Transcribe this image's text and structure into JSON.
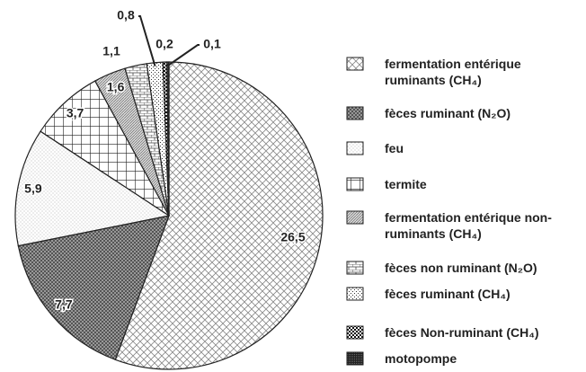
{
  "chart_data": {
    "type": "pie",
    "categories": [
      "fermentation entérique ruminants (CH₄)",
      "fèces ruminant (N₂O)",
      "feu",
      "termite",
      "fermentation entérique non-ruminants (CH₄)",
      "fèces non ruminant (N₂O)",
      "fèces ruminant (CH₄)",
      "fèces Non-ruminant (CH₄)",
      "motopompe"
    ],
    "values": [
      26.5,
      7.7,
      5.9,
      3.7,
      1.6,
      1.1,
      0.8,
      0.2,
      0.1
    ],
    "value_labels": [
      "26,5",
      "7,7",
      "5,9",
      "3,7",
      "1,6",
      "1,1",
      "0,8",
      "0,2",
      "0,1"
    ],
    "legend": "right"
  }
}
